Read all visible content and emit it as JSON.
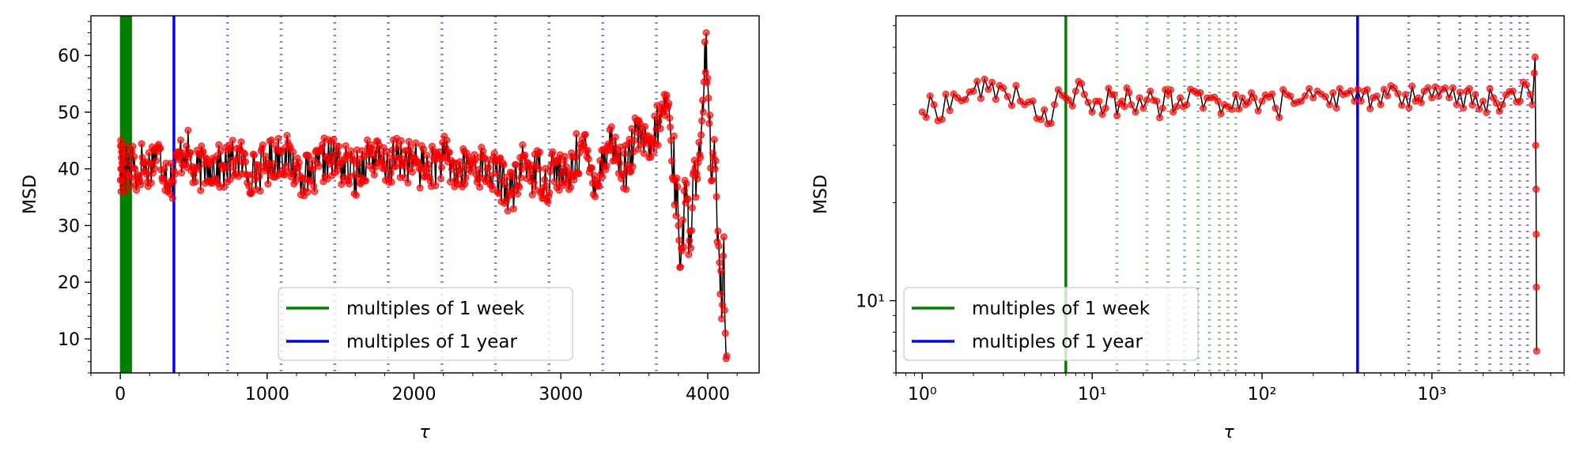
{
  "figure": {
    "legend_entries": [
      {
        "label": "multiples of 1 week",
        "color": "#008000"
      },
      {
        "label": "multiples of 1 year",
        "color": "#0000ff"
      }
    ]
  },
  "chart_data": [
    {
      "type": "line",
      "title": "",
      "xlabel": "τ",
      "ylabel": "MSD",
      "xscale": "linear",
      "yscale": "linear",
      "xlim": [
        -200,
        4350
      ],
      "ylim": [
        4,
        67
      ],
      "xticks": [
        0,
        1000,
        2000,
        3000,
        4000
      ],
      "xtick_labels": [
        "0",
        "1000",
        "2000",
        "3000",
        "4000"
      ],
      "yticks": [
        10,
        20,
        30,
        40,
        50,
        60
      ],
      "ytick_labels": [
        "10",
        "20",
        "30",
        "40",
        "50",
        "60"
      ],
      "legend_placement": "lower-center",
      "grid": false,
      "colors": {
        "data_line": "#000000",
        "markers": "#ff0000",
        "week": "#008000",
        "year": "#0000ff"
      },
      "reference_lines": {
        "week_solid": [
          7,
          14,
          21,
          28,
          35,
          42,
          49,
          56,
          63,
          70
        ],
        "year_solid": [
          365
        ],
        "year_dotted": [
          730,
          1095,
          1460,
          1825,
          2190,
          2555,
          2920,
          3285,
          3650
        ]
      },
      "series": [
        {
          "x": [
            1,
            2,
            3,
            4,
            5,
            6,
            7,
            8,
            9,
            10,
            12,
            14,
            16,
            18,
            20,
            25,
            30,
            35,
            40,
            50,
            60,
            70,
            80,
            100,
            120,
            150,
            180,
            200,
            250,
            300,
            350,
            400,
            450,
            500,
            600,
            700,
            800,
            900,
            1000,
            1100,
            1200,
            1300,
            1400,
            1500,
            1600,
            1700,
            1800,
            1900,
            2000,
            2100,
            2200,
            2300,
            2400,
            2500,
            2600,
            2650,
            2700,
            2750,
            2800,
            2850,
            2900,
            2950,
            3000,
            3050,
            3100,
            3150,
            3200,
            3250,
            3300,
            3350,
            3400,
            3450,
            3500,
            3550,
            3600,
            3650,
            3700,
            3720,
            3750,
            3780,
            3800,
            3820,
            3850,
            3880,
            3900,
            3920,
            3950,
            3970,
            3990,
            4000,
            4010,
            4030,
            4050,
            4070,
            4090,
            4100,
            4110,
            4120,
            4130
          ],
          "y": [
            38,
            44,
            45,
            40,
            36,
            40,
            42,
            44,
            43,
            38,
            41,
            39,
            43,
            37,
            41,
            38,
            42,
            36,
            44,
            39,
            41,
            37,
            43,
            40,
            38,
            42,
            39,
            41,
            43,
            40,
            38,
            42,
            44,
            39,
            41,
            40,
            42,
            39,
            41,
            43,
            40,
            38,
            42,
            41,
            39,
            43,
            40,
            42,
            41,
            40,
            42,
            39,
            41,
            40,
            38,
            36,
            37,
            42,
            39,
            40,
            37,
            41,
            39,
            38,
            42,
            44,
            40,
            38,
            43,
            45,
            41,
            40,
            45,
            46,
            42,
            47,
            50,
            53,
            45,
            38,
            30,
            26,
            34,
            29,
            39,
            35,
            42,
            50,
            64,
            56,
            48,
            38,
            40,
            29,
            22,
            16,
            28,
            11,
            7
          ]
        }
      ]
    },
    {
      "type": "line",
      "title": "",
      "xlabel": "τ",
      "ylabel": "MSD",
      "xscale": "log",
      "yscale": "log",
      "xlim": [
        0.7,
        6000
      ],
      "ylim": [
        6,
        75
      ],
      "xticks": [
        1,
        10,
        100,
        1000
      ],
      "xtick_labels": [
        "10⁰",
        "10¹",
        "10²",
        "10³"
      ],
      "yticks": [
        10
      ],
      "ytick_labels": [
        "10¹"
      ],
      "legend_placement": "lower-left",
      "grid": false,
      "colors": {
        "data_line": "#000000",
        "markers": "#ff0000",
        "week": "#008000",
        "year": "#0000ff"
      },
      "reference_lines": {
        "week_solid": [
          7
        ],
        "week_dotted": [
          14,
          21,
          28,
          35,
          42,
          49,
          56,
          63,
          70
        ],
        "year_solid": [
          365
        ],
        "year_dotted": [
          730,
          1095,
          1460,
          1825,
          2190,
          2555,
          2920,
          3285,
          3650
        ]
      },
      "series": [
        {
          "x": [
            1,
            2,
            3,
            4,
            5,
            6,
            7,
            8,
            9,
            10,
            11,
            12,
            13,
            14,
            15,
            16,
            17,
            18,
            19,
            20,
            22,
            24,
            26,
            28,
            30,
            33,
            36,
            40,
            45,
            50,
            55,
            60,
            70,
            80,
            90,
            100,
            120,
            140,
            170,
            200,
            250,
            300,
            350,
            400,
            450,
            500,
            600,
            700,
            800,
            900,
            1000,
            1200,
            1400,
            1600,
            1800,
            2000,
            2300,
            2600,
            3000,
            3300,
            3600,
            3800,
            3900,
            4000,
            4050,
            4080,
            4100,
            4110,
            4120,
            4130
          ],
          "y": [
            38,
            44,
            45,
            40,
            36,
            40,
            42,
            44,
            43,
            38,
            41,
            39,
            43,
            37,
            41,
            45,
            40,
            38,
            42,
            39,
            44,
            41,
            39,
            43,
            38,
            42,
            40,
            44,
            39,
            42,
            41,
            40,
            43,
            40,
            42,
            41,
            39,
            43,
            41,
            42,
            40,
            43,
            41,
            44,
            42,
            40,
            45,
            43,
            41,
            44,
            42,
            45,
            40,
            44,
            43,
            41,
            42,
            40,
            44,
            41,
            46,
            43,
            40,
            50,
            56,
            30,
            22,
            16,
            11,
            7
          ]
        }
      ]
    }
  ]
}
